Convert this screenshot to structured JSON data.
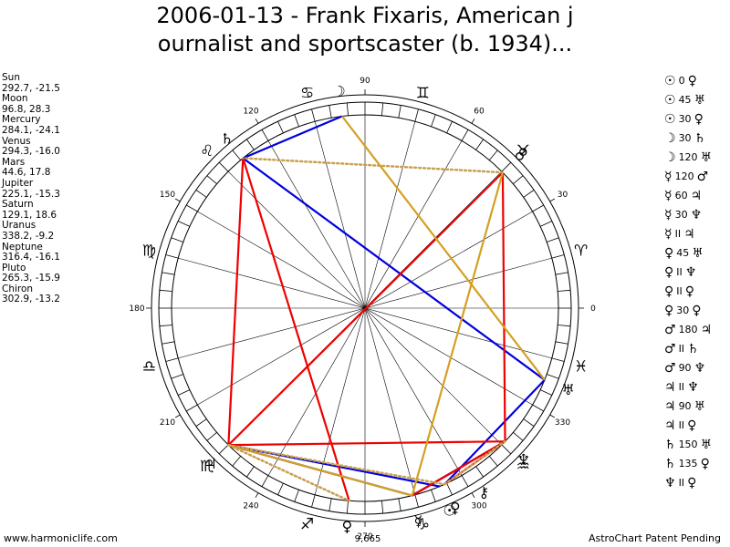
{
  "title": "2006-01-13 - Frank Fixaris, American j\nournalist and sportscaster (b. 1934)...",
  "planets": [
    {
      "name": "Sun",
      "coords": "292.7, -21.5",
      "glyph": "☉"
    },
    {
      "name": "Moon",
      "coords": "96.8, 28.3",
      "glyph": "☽"
    },
    {
      "name": "Mercury",
      "coords": "284.1, -24.1",
      "glyph": "☿"
    },
    {
      "name": "Venus",
      "coords": "294.3, -16.0",
      "glyph": "♀"
    },
    {
      "name": "Mars",
      "coords": "44.6, 17.8",
      "glyph": "♂"
    },
    {
      "name": "Jupiter",
      "coords": "225.1, -15.3",
      "glyph": "♃"
    },
    {
      "name": "Saturn",
      "coords": "129.1, 18.6",
      "glyph": "♄"
    },
    {
      "name": "Uranus",
      "coords": "338.2, -9.2",
      "glyph": "♅"
    },
    {
      "name": "Neptune",
      "coords": "316.4, -16.1",
      "glyph": "♆"
    },
    {
      "name": "Pluto",
      "coords": "265.3, -15.9",
      "glyph": "♀"
    },
    {
      "name": "Chiron",
      "coords": "302.9, -13.2",
      "glyph": "⚷"
    }
  ],
  "aspects": [
    {
      "p1": "☉",
      "value": "0",
      "p2": "♀"
    },
    {
      "p1": "☉",
      "value": "45",
      "p2": "♅"
    },
    {
      "p1": "☉",
      "value": "30",
      "p2": "♀"
    },
    {
      "p1": "☽",
      "value": "30",
      "p2": "♄"
    },
    {
      "p1": "☽",
      "value": "120",
      "p2": "♅"
    },
    {
      "p1": "☿",
      "value": "120",
      "p2": "♂"
    },
    {
      "p1": "☿",
      "value": "60",
      "p2": "♃"
    },
    {
      "p1": "☿",
      "value": "30",
      "p2": "♆"
    },
    {
      "p1": "☿",
      "value": "II",
      "p2": "♃"
    },
    {
      "p1": "♀",
      "value": "45",
      "p2": "♅"
    },
    {
      "p1": "♀",
      "value": "II",
      "p2": "♆"
    },
    {
      "p1": "♀",
      "value": "II",
      "p2": "♀"
    },
    {
      "p1": "♀",
      "value": "30",
      "p2": "♀"
    },
    {
      "p1": "♂",
      "value": "180",
      "p2": "♃"
    },
    {
      "p1": "♂",
      "value": "II",
      "p2": "♄"
    },
    {
      "p1": "♂",
      "value": "90",
      "p2": "♆"
    },
    {
      "p1": "♃",
      "value": "II",
      "p2": "♆"
    },
    {
      "p1": "♃",
      "value": "90",
      "p2": "♅"
    },
    {
      "p1": "♃",
      "value": "II",
      "p2": "♀"
    },
    {
      "p1": "♄",
      "value": "150",
      "p2": "♅"
    },
    {
      "p1": "♄",
      "value": "135",
      "p2": "♀"
    },
    {
      "p1": "♆",
      "value": "II",
      "p2": "♀"
    }
  ],
  "wheel": {
    "degree_labels": [
      {
        "deg": 0,
        "text": "0"
      },
      {
        "deg": 30,
        "text": "30"
      },
      {
        "deg": 60,
        "text": "60"
      },
      {
        "deg": 90,
        "text": "90"
      },
      {
        "deg": 120,
        "text": "120"
      },
      {
        "deg": 150,
        "text": "150"
      },
      {
        "deg": 180,
        "text": "180"
      },
      {
        "deg": 210,
        "text": "210"
      },
      {
        "deg": 240,
        "text": "240"
      },
      {
        "deg": 270,
        "text": "270"
      },
      {
        "deg": 300,
        "text": "300"
      },
      {
        "deg": 330,
        "text": "330"
      }
    ],
    "signs": [
      {
        "name": "aries",
        "glyph": "♈",
        "deg": 15
      },
      {
        "name": "taurus",
        "glyph": "♉",
        "deg": 45
      },
      {
        "name": "gemini",
        "glyph": "♊",
        "deg": 75
      },
      {
        "name": "cancer",
        "glyph": "♋",
        "deg": 105
      },
      {
        "name": "leo",
        "glyph": "♌",
        "deg": 135
      },
      {
        "name": "virgo",
        "glyph": "♍",
        "deg": 165
      },
      {
        "name": "libra",
        "glyph": "♎",
        "deg": 195
      },
      {
        "name": "scorpio",
        "glyph": "♏",
        "deg": 225
      },
      {
        "name": "sagittarius",
        "glyph": "♐",
        "deg": 255
      },
      {
        "name": "capricorn",
        "glyph": "♑",
        "deg": 285
      },
      {
        "name": "aquarius",
        "glyph": "♒",
        "deg": 315
      },
      {
        "name": "pisces",
        "glyph": "♓",
        "deg": 345
      }
    ],
    "position_label": "9,665",
    "aspect_colors": {
      "red": "#ee0000",
      "blue": "#0000dd",
      "gold": "#d4a020",
      "dotted": "#c8a050"
    }
  },
  "aspect_lines": [
    {
      "from": 129.1,
      "to": 338.2,
      "color": "blue",
      "style": "solid"
    },
    {
      "from": 96.8,
      "to": 129.1,
      "color": "blue",
      "style": "solid"
    },
    {
      "from": 225.1,
      "to": 292.7,
      "color": "blue",
      "style": "solid"
    },
    {
      "from": 225.1,
      "to": 284.1,
      "color": "blue",
      "style": "solid"
    },
    {
      "from": 284.1,
      "to": 316.4,
      "color": "blue",
      "style": "solid"
    },
    {
      "from": 294.3,
      "to": 338.2,
      "color": "blue",
      "style": "solid"
    },
    {
      "from": 44.6,
      "to": 225.1,
      "color": "red",
      "style": "solid"
    },
    {
      "from": 44.6,
      "to": 316.4,
      "color": "red",
      "style": "solid"
    },
    {
      "from": 129.1,
      "to": 265.3,
      "color": "red",
      "style": "solid"
    },
    {
      "from": 225.1,
      "to": 316.4,
      "color": "red",
      "style": "solid"
    },
    {
      "from": 129.1,
      "to": 225.1,
      "color": "red",
      "style": "solid"
    },
    {
      "from": 294.3,
      "to": 316.4,
      "color": "red",
      "style": "solid"
    },
    {
      "from": 284.1,
      "to": 316.4,
      "color": "red",
      "style": "solid"
    },
    {
      "from": 96.8,
      "to": 338.2,
      "color": "gold",
      "style": "solid"
    },
    {
      "from": 44.6,
      "to": 284.1,
      "color": "gold",
      "style": "solid"
    },
    {
      "from": 284.1,
      "to": 225.1,
      "color": "gold",
      "style": "solid"
    },
    {
      "from": 44.6,
      "to": 129.1,
      "color": "dotted",
      "style": "dotted"
    },
    {
      "from": 225.1,
      "to": 294.3,
      "color": "dotted",
      "style": "dotted"
    },
    {
      "from": 225.1,
      "to": 265.3,
      "color": "dotted",
      "style": "dotted"
    },
    {
      "from": 294.3,
      "to": 316.4,
      "color": "dotted",
      "style": "dotted"
    }
  ],
  "footer": {
    "left": "www.harmoniclife.com",
    "right": "AstroChart Patent Pending"
  }
}
